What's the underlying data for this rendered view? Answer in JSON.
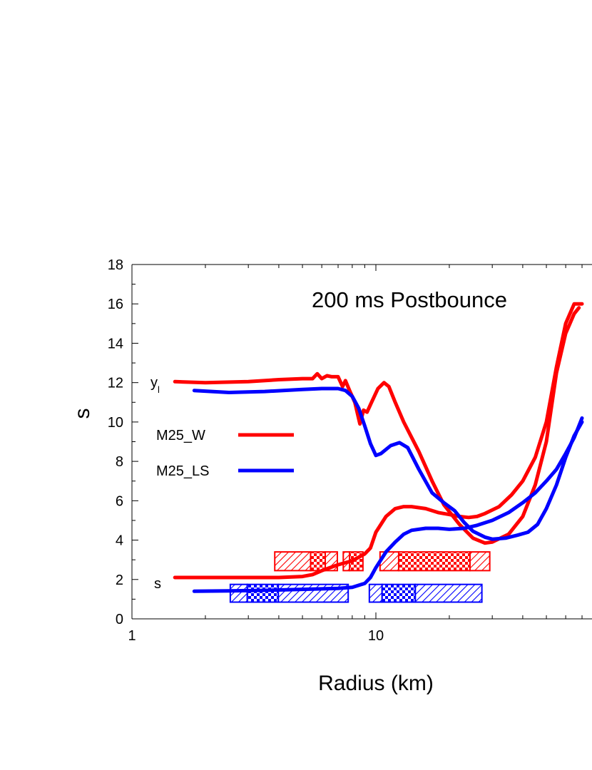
{
  "chart_data": {
    "type": "line",
    "title": "",
    "annotation": "200 ms Postbounce",
    "xlabel": "Radius (km)",
    "ylabel": "s",
    "xscale": "log",
    "xlim": [
      1,
      60
    ],
    "ylim": [
      0,
      18
    ],
    "grid": false,
    "legend_position": "middle-left",
    "x_tick_labels": [
      "1",
      "10"
    ],
    "x_tick_values": [
      1,
      10
    ],
    "y_tick_values": [
      0,
      2,
      4,
      6,
      8,
      10,
      12,
      14,
      16,
      18
    ],
    "y_tick_labels": [
      "0",
      "2",
      "4",
      "6",
      "8",
      "10",
      "12",
      "14",
      "16",
      "18"
    ],
    "curve_labels": [
      {
        "text": "y",
        "sub": "l",
        "x": 1.3,
        "y": 12
      },
      {
        "text": "s",
        "sub": "",
        "x": 1.3,
        "y": 1.8
      }
    ],
    "colors": {
      "M25_W": "#ff0000",
      "M25_LS": "#0000ff",
      "axis": "#000000"
    },
    "series": [
      {
        "name": "M25_W",
        "quantity": "y_l",
        "color": "#ff0000",
        "points": [
          [
            1.5,
            12.05
          ],
          [
            2.0,
            12.0
          ],
          [
            3.0,
            12.05
          ],
          [
            4.0,
            12.15
          ],
          [
            5.0,
            12.2
          ],
          [
            5.5,
            12.2
          ],
          [
            5.75,
            12.45
          ],
          [
            6.0,
            12.2
          ],
          [
            6.3,
            12.35
          ],
          [
            6.6,
            12.3
          ],
          [
            7.0,
            12.3
          ],
          [
            7.3,
            11.8
          ],
          [
            7.5,
            12.1
          ],
          [
            7.8,
            11.6
          ],
          [
            8.2,
            11.0
          ],
          [
            8.6,
            9.9
          ],
          [
            8.9,
            10.6
          ],
          [
            9.2,
            10.5
          ],
          [
            9.6,
            11.0
          ],
          [
            10.2,
            11.7
          ],
          [
            10.8,
            12.0
          ],
          [
            11.3,
            11.8
          ],
          [
            12.0,
            11.0
          ],
          [
            13.0,
            10.0
          ],
          [
            15.0,
            8.5
          ],
          [
            17.0,
            7.0
          ],
          [
            19.0,
            5.8
          ],
          [
            22.0,
            4.8
          ],
          [
            25.0,
            4.1
          ],
          [
            28.0,
            3.85
          ],
          [
            30.0,
            3.9
          ],
          [
            35.0,
            4.3
          ],
          [
            40.0,
            5.2
          ],
          [
            45.0,
            6.8
          ],
          [
            50.0,
            9.0
          ],
          [
            55.0,
            12.5
          ],
          [
            60.0,
            14.5
          ],
          [
            65.0,
            15.5
          ],
          [
            68.0,
            15.8
          ]
        ]
      },
      {
        "name": "M25_W",
        "quantity": "s",
        "color": "#ff0000",
        "points": [
          [
            1.5,
            2.1
          ],
          [
            2.0,
            2.1
          ],
          [
            3.0,
            2.1
          ],
          [
            4.0,
            2.1
          ],
          [
            5.0,
            2.15
          ],
          [
            5.5,
            2.25
          ],
          [
            6.0,
            2.45
          ],
          [
            7.0,
            2.75
          ],
          [
            8.0,
            2.95
          ],
          [
            9.0,
            3.3
          ],
          [
            9.5,
            3.6
          ],
          [
            10.0,
            4.4
          ],
          [
            11.0,
            5.2
          ],
          [
            12.0,
            5.6
          ],
          [
            13.0,
            5.7
          ],
          [
            14.0,
            5.7
          ],
          [
            16.0,
            5.6
          ],
          [
            18.0,
            5.4
          ],
          [
            20.0,
            5.3
          ],
          [
            22.0,
            5.2
          ],
          [
            24.0,
            5.15
          ],
          [
            26.0,
            5.2
          ],
          [
            28.0,
            5.35
          ],
          [
            32.0,
            5.7
          ],
          [
            36.0,
            6.3
          ],
          [
            40.0,
            7.0
          ],
          [
            45.0,
            8.2
          ],
          [
            50.0,
            10.0
          ],
          [
            55.0,
            12.8
          ],
          [
            60.0,
            15.0
          ],
          [
            65.0,
            16.0
          ],
          [
            70.0,
            16.0
          ]
        ]
      },
      {
        "name": "M25_LS",
        "quantity": "y_l",
        "color": "#0000ff",
        "points": [
          [
            1.8,
            11.6
          ],
          [
            2.5,
            11.5
          ],
          [
            3.5,
            11.55
          ],
          [
            5.0,
            11.65
          ],
          [
            6.0,
            11.7
          ],
          [
            7.0,
            11.7
          ],
          [
            7.5,
            11.6
          ],
          [
            8.0,
            11.3
          ],
          [
            8.5,
            10.7
          ],
          [
            9.0,
            9.8
          ],
          [
            9.5,
            8.9
          ],
          [
            10.0,
            8.3
          ],
          [
            10.5,
            8.4
          ],
          [
            11.5,
            8.8
          ],
          [
            12.5,
            8.95
          ],
          [
            13.5,
            8.7
          ],
          [
            15.0,
            7.6
          ],
          [
            17.0,
            6.4
          ],
          [
            19.0,
            5.9
          ],
          [
            21.0,
            5.5
          ],
          [
            23.0,
            4.9
          ],
          [
            25.0,
            4.45
          ],
          [
            28.0,
            4.15
          ],
          [
            30.0,
            4.05
          ],
          [
            34.0,
            4.1
          ],
          [
            38.0,
            4.25
          ],
          [
            42.0,
            4.4
          ],
          [
            46.0,
            4.8
          ],
          [
            50.0,
            5.6
          ],
          [
            55.0,
            6.8
          ],
          [
            60.0,
            8.2
          ],
          [
            65.0,
            9.3
          ],
          [
            70.0,
            10.0
          ]
        ]
      },
      {
        "name": "M25_LS",
        "quantity": "s",
        "color": "#0000ff",
        "points": [
          [
            1.8,
            1.4
          ],
          [
            2.5,
            1.42
          ],
          [
            3.5,
            1.45
          ],
          [
            5.0,
            1.5
          ],
          [
            7.0,
            1.55
          ],
          [
            8.0,
            1.6
          ],
          [
            9.0,
            1.8
          ],
          [
            9.5,
            2.1
          ],
          [
            10.0,
            2.6
          ],
          [
            11.0,
            3.4
          ],
          [
            12.0,
            3.9
          ],
          [
            13.0,
            4.3
          ],
          [
            14.0,
            4.5
          ],
          [
            16.0,
            4.6
          ],
          [
            18.0,
            4.6
          ],
          [
            20.0,
            4.55
          ],
          [
            23.0,
            4.6
          ],
          [
            26.0,
            4.75
          ],
          [
            30.0,
            5.0
          ],
          [
            35.0,
            5.4
          ],
          [
            40.0,
            5.9
          ],
          [
            45.0,
            6.4
          ],
          [
            50.0,
            7.0
          ],
          [
            55.0,
            7.6
          ],
          [
            60.0,
            8.4
          ],
          [
            65.0,
            9.2
          ],
          [
            70.0,
            10.2
          ]
        ]
      }
    ],
    "hatched_boxes": [
      {
        "series": "M25_W",
        "pattern": "diag",
        "x0": 3.85,
        "x1": 5.4,
        "y0": 2.45,
        "y1": 3.4
      },
      {
        "series": "M25_W",
        "pattern": "check",
        "x0": 5.4,
        "x1": 6.2,
        "y0": 2.45,
        "y1": 3.4
      },
      {
        "series": "M25_W",
        "pattern": "diag",
        "x0": 6.2,
        "x1": 6.95,
        "y0": 2.45,
        "y1": 3.4
      },
      {
        "series": "M25_W",
        "pattern": "diag",
        "x0": 7.35,
        "x1": 7.8,
        "y0": 2.45,
        "y1": 3.4
      },
      {
        "series": "M25_W",
        "pattern": "check",
        "x0": 7.8,
        "x1": 8.85,
        "y0": 2.45,
        "y1": 3.4
      },
      {
        "series": "M25_W",
        "pattern": "diag",
        "x0": 10.4,
        "x1": 12.4,
        "y0": 2.45,
        "y1": 3.4
      },
      {
        "series": "M25_W",
        "pattern": "check",
        "x0": 12.4,
        "x1": 24.3,
        "y0": 2.45,
        "y1": 3.4
      },
      {
        "series": "M25_W",
        "pattern": "diag",
        "x0": 24.3,
        "x1": 29.3,
        "y0": 2.45,
        "y1": 3.4
      },
      {
        "series": "M25_LS",
        "pattern": "diag",
        "x0": 2.53,
        "x1": 2.97,
        "y0": 0.85,
        "y1": 1.75
      },
      {
        "series": "M25_LS",
        "pattern": "check",
        "x0": 2.97,
        "x1": 3.98,
        "y0": 0.85,
        "y1": 1.75
      },
      {
        "series": "M25_LS",
        "pattern": "diag",
        "x0": 3.98,
        "x1": 7.7,
        "y0": 0.85,
        "y1": 1.75
      },
      {
        "series": "M25_LS",
        "pattern": "diag",
        "x0": 9.4,
        "x1": 10.6,
        "y0": 0.85,
        "y1": 1.75
      },
      {
        "series": "M25_LS",
        "pattern": "check",
        "x0": 10.6,
        "x1": 14.5,
        "y0": 0.85,
        "y1": 1.75
      },
      {
        "series": "M25_LS",
        "pattern": "diag",
        "x0": 14.5,
        "x1": 27.2,
        "y0": 0.85,
        "y1": 1.75
      }
    ],
    "legend": [
      {
        "label": "M25_W",
        "color": "#ff0000"
      },
      {
        "label": "M25_LS",
        "color": "#0000ff"
      }
    ]
  }
}
